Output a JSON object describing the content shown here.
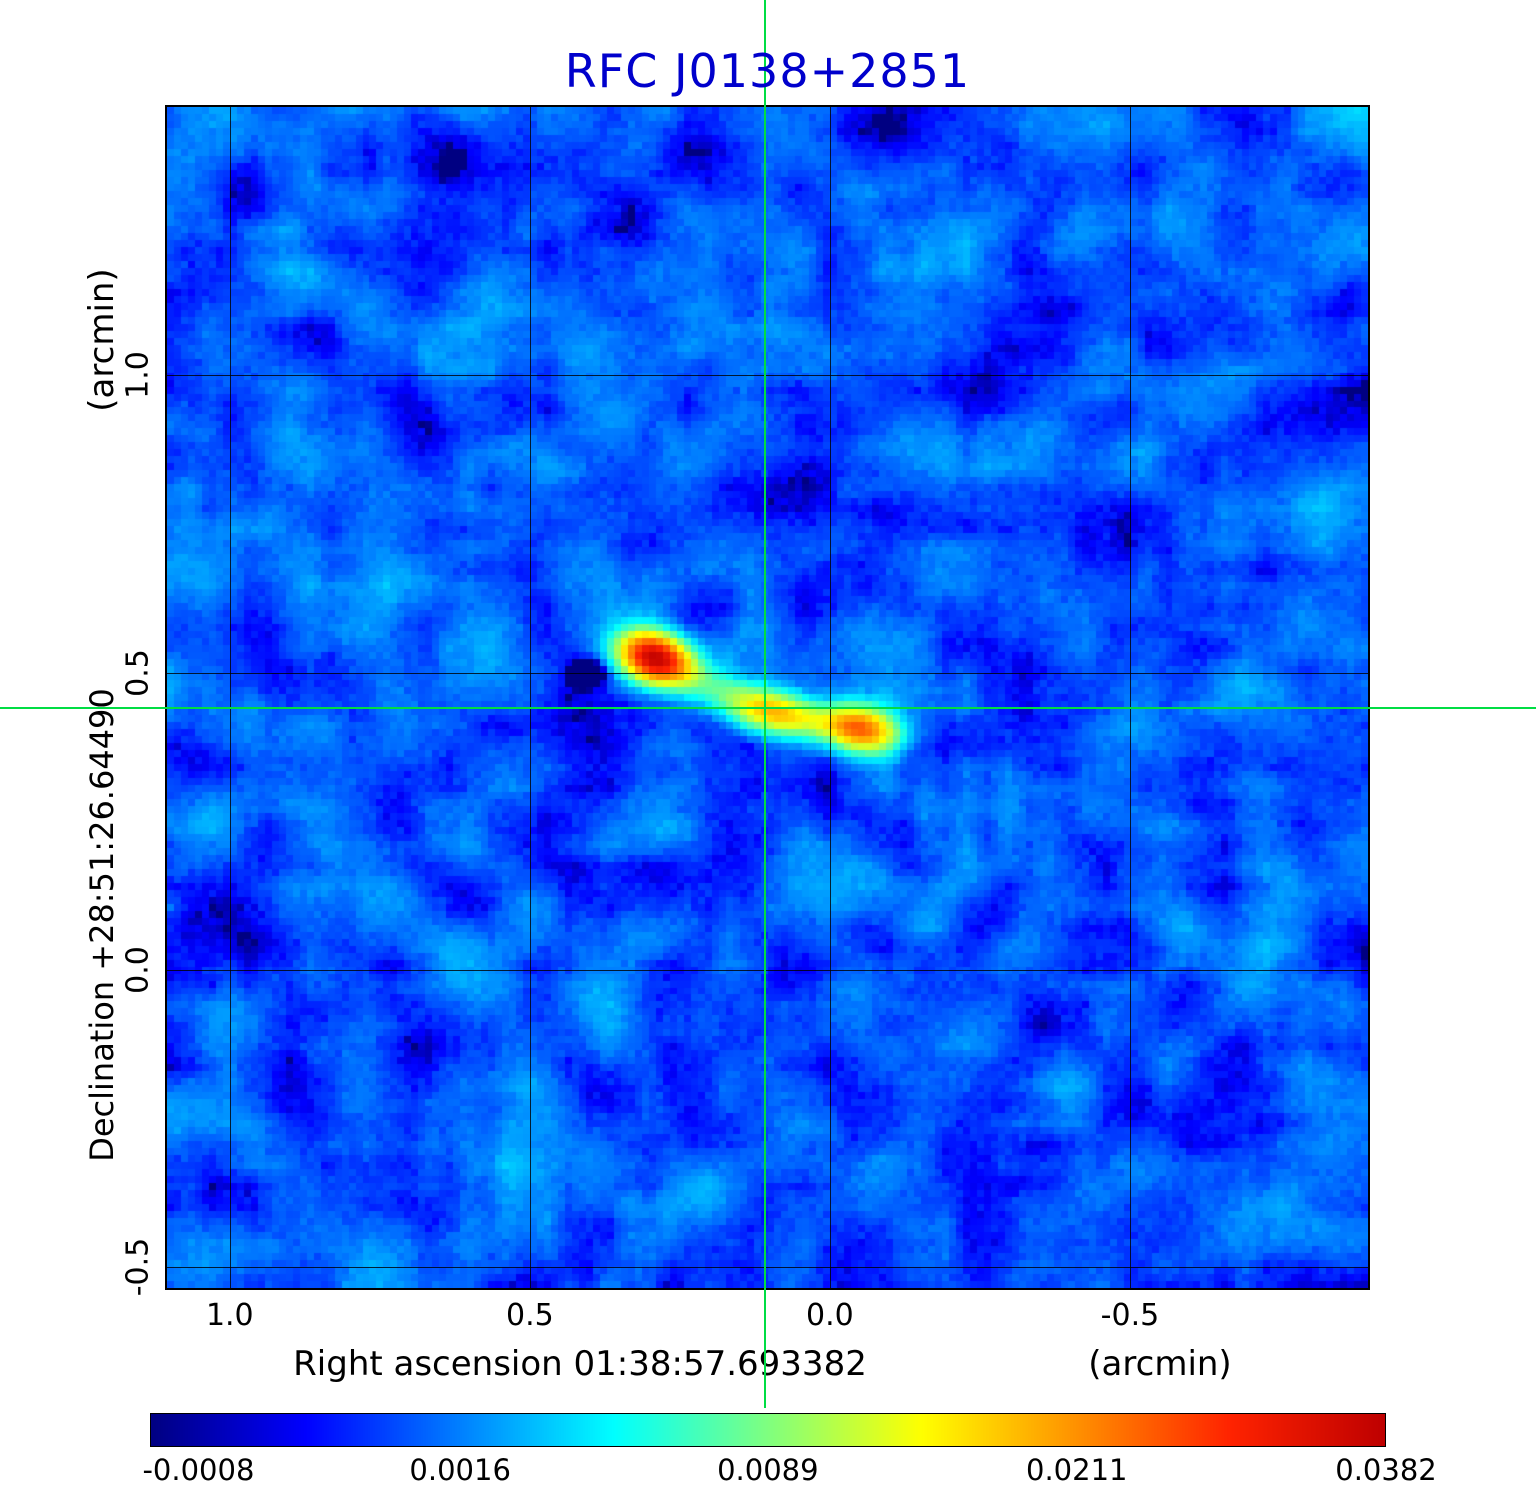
{
  "title": {
    "text": "RFC J0138+2851",
    "color": "#0000cc"
  },
  "axes": {
    "x_label": "Right ascension  01:38:57.693382",
    "x_unit": "(arcmin)",
    "y_label": "Declination  +28:51:26.64490",
    "y_unit": "(arcmin)",
    "x_tick_labels": [
      "1.0",
      "0.5",
      "0.0",
      "-0.5"
    ],
    "y_tick_labels": [
      "1.0",
      "0.5",
      "0.0",
      "-0.5"
    ]
  },
  "colorbar": {
    "tick_labels": [
      "-0.0008",
      "0.0016",
      "0.0089",
      "0.0211",
      "0.0382"
    ]
  },
  "chart_data": {
    "type": "heatmap",
    "title": "RFC J0138+2851",
    "xlabel": "Right ascension  01:38:57.693382 (arcmin)",
    "ylabel": "Declination +28:51:26.64490 (arcmin)",
    "x_range": [
      1.108,
      -0.9
    ],
    "y_range": [
      -0.538,
      1.454
    ],
    "x_ticks": [
      1.0,
      0.5,
      0.0,
      -0.5
    ],
    "y_ticks": [
      1.0,
      0.5,
      0.0,
      -0.5
    ],
    "grid": true,
    "grid_color": "#000000",
    "crosshair": {
      "x": 0.108,
      "y": 0.44,
      "color": "#00dd44"
    },
    "colorbar_ticks": [
      -0.0008,
      0.0016,
      0.0089,
      0.0211,
      0.0382
    ],
    "value_min": -0.00086,
    "value_max": 0.0382,
    "stretch": "sqrt",
    "noise": {
      "mean": 0.0008,
      "sigma": 0.0007,
      "seed": 20138
    },
    "sources": [
      {
        "ra_offset": 0.292,
        "dec_offset": 0.525,
        "peak": 0.036,
        "sigma_major": 0.04,
        "sigma_minor": 0.027,
        "angle_deg": 20
      },
      {
        "ra_offset": 0.1,
        "dec_offset": 0.436,
        "peak": 0.013,
        "sigma_major": 0.05,
        "sigma_minor": 0.024,
        "angle_deg": 12
      },
      {
        "ra_offset": -0.052,
        "dec_offset": 0.405,
        "peak": 0.02,
        "sigma_major": 0.04,
        "sigma_minor": 0.025,
        "angle_deg": 12
      },
      {
        "ra_offset": 0.2,
        "dec_offset": 0.478,
        "peak": 0.005,
        "sigma_major": 0.065,
        "sigma_minor": 0.022,
        "angle_deg": 22
      },
      {
        "ra_offset": 0.03,
        "dec_offset": 0.42,
        "peak": 0.006,
        "sigma_major": 0.075,
        "sigma_minor": 0.02,
        "angle_deg": 10
      },
      {
        "ra_offset": 0.4,
        "dec_offset": 0.5,
        "peak": -0.005,
        "sigma_major": 0.022,
        "sigma_minor": 0.016,
        "angle_deg": 0
      }
    ],
    "colormap": [
      {
        "pos": 0.0,
        "rgb": [
          0,
          0,
          130
        ]
      },
      {
        "pos": 0.125,
        "rgb": [
          0,
          0,
          255
        ]
      },
      {
        "pos": 0.375,
        "rgb": [
          0,
          255,
          255
        ]
      },
      {
        "pos": 0.625,
        "rgb": [
          255,
          255,
          0
        ]
      },
      {
        "pos": 0.875,
        "rgb": [
          255,
          35,
          0
        ]
      },
      {
        "pos": 1.0,
        "rgb": [
          190,
          0,
          0
        ]
      }
    ]
  }
}
